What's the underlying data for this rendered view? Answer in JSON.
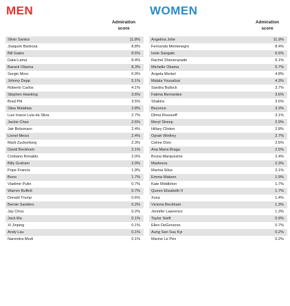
{
  "panels": [
    {
      "key": "men",
      "title": "MEN",
      "column_header": "Admiration score",
      "rows": [
        {
          "name": "Silvio Santos",
          "score": "11.8%"
        },
        {
          "name": "Joaquim Barbosa",
          "score": "8.8%"
        },
        {
          "name": "Bill Gates",
          "score": "8.5%"
        },
        {
          "name": "Dalai Lama",
          "score": "8.4%"
        },
        {
          "name": "Barack Obama",
          "score": "8.3%"
        },
        {
          "name": "Sergio Moro",
          "score": "6.9%"
        },
        {
          "name": "Johnny Depp",
          "score": "5.1%"
        },
        {
          "name": "Roberto Carlos",
          "score": "4.1%"
        },
        {
          "name": "Stephen Hawking",
          "score": "3.6%"
        },
        {
          "name": "Brad Pitt",
          "score": "3.5%"
        },
        {
          "name": "Silas Malafaia",
          "score": "2.8%"
        },
        {
          "name": "Luiz Inacio Lula da Silva",
          "score": "2.7%"
        },
        {
          "name": "Jackie Chan",
          "score": "2.6%"
        },
        {
          "name": "Jair Bolsonaro",
          "score": "2.4%"
        },
        {
          "name": "Lionel Messi",
          "score": "2.4%"
        },
        {
          "name": "Mark Zuckerberg",
          "score": "2.3%"
        },
        {
          "name": "David Beckham",
          "score": "2.1%"
        },
        {
          "name": "Cristiano Ronaldo",
          "score": "2.0%"
        },
        {
          "name": "Billy Graham",
          "score": "2.0%"
        },
        {
          "name": "Pope Francis",
          "score": "1.9%"
        },
        {
          "name": "Bono",
          "score": "1.7%"
        },
        {
          "name": "Vladimir Putin",
          "score": "0.7%"
        },
        {
          "name": "Warren Buffett",
          "score": "0.7%"
        },
        {
          "name": "Donald Trump",
          "score": "0.6%"
        },
        {
          "name": "Bernie Sanders",
          "score": "0.2%"
        },
        {
          "name": "Jay Chou",
          "score": "0.2%"
        },
        {
          "name": "Jack Ma",
          "score": "0.1%"
        },
        {
          "name": "Xi Jinping",
          "score": "0.1%"
        },
        {
          "name": "Andy Lau",
          "score": "0.1%"
        },
        {
          "name": "Narendra Modi",
          "score": "0.1%"
        }
      ]
    },
    {
      "key": "women",
      "title": "WOMEN",
      "column_header": "Admiration score",
      "rows": [
        {
          "name": "Angelina Jolie",
          "score": "11.9%"
        },
        {
          "name": "Fernanda Montenegro",
          "score": "8.4%"
        },
        {
          "name": "Ivete Sangalo",
          "score": "6.5%"
        },
        {
          "name": "Rachel Shenerazade",
          "score": "6.1%"
        },
        {
          "name": "Michelle Obama",
          "score": "5.7%"
        },
        {
          "name": "Angela Merkel",
          "score": "4.8%"
        },
        {
          "name": "Malala Yousafzai",
          "score": "4.3%"
        },
        {
          "name": "Sandra Bullock",
          "score": "3.7%"
        },
        {
          "name": "Fatima Bernardes",
          "score": "3.6%"
        },
        {
          "name": "Shakira",
          "score": "3.5%"
        },
        {
          "name": "Beyonce",
          "score": "3.3%"
        },
        {
          "name": "Dilma Rousseff",
          "score": "3.1%"
        },
        {
          "name": "Meryl Streep",
          "score": "2.9%"
        },
        {
          "name": "Hillary Clinton",
          "score": "2.8%"
        },
        {
          "name": "Oprah Winfrey",
          "score": "2.7%"
        },
        {
          "name": "Celine Dion",
          "score": "2.5%"
        },
        {
          "name": "Ana Maria Braga",
          "score": "2.5%"
        },
        {
          "name": "Bruna Marquezine",
          "score": "2.4%"
        },
        {
          "name": "Madonna",
          "score": "2.3%"
        },
        {
          "name": "Marina Silva",
          "score": "2.1%"
        },
        {
          "name": "Emma Watson",
          "score": "1.9%"
        },
        {
          "name": "Kate Middleton",
          "score": "1.7%"
        },
        {
          "name": "Queen Elizabeth II",
          "score": "1.7%"
        },
        {
          "name": "Xuxa",
          "score": "1.4%"
        },
        {
          "name": "Victoria Beckham",
          "score": "1.3%"
        },
        {
          "name": "Jennifer Lawrence",
          "score": "1.3%"
        },
        {
          "name": "Taylor Swift",
          "score": "0.9%"
        },
        {
          "name": "Ellen DeGeneres",
          "score": "0.7%"
        },
        {
          "name": "Aung San Suu Kyi",
          "score": "0.2%"
        },
        {
          "name": "Marine Le Pen",
          "score": "0.2%"
        }
      ]
    }
  ],
  "colors": {
    "men_title": "#e4322b",
    "women_title": "#2b8ac6",
    "row_shade": "#e3e3e3"
  },
  "chart_data": [
    {
      "type": "table",
      "title": "MEN",
      "columns": [
        "",
        "Admiration score"
      ],
      "categories": [
        "Silvio Santos",
        "Joaquim Barbosa",
        "Bill Gates",
        "Dalai Lama",
        "Barack Obama",
        "Sergio Moro",
        "Johnny Depp",
        "Roberto Carlos",
        "Stephen Hawking",
        "Brad Pitt",
        "Silas Malafaia",
        "Luiz Inacio Lula da Silva",
        "Jackie Chan",
        "Jair Bolsonaro",
        "Lionel Messi",
        "Mark Zuckerberg",
        "David Beckham",
        "Cristiano Ronaldo",
        "Billy Graham",
        "Pope Francis",
        "Bono",
        "Vladimir Putin",
        "Warren Buffett",
        "Donald Trump",
        "Bernie Sanders",
        "Jay Chou",
        "Jack Ma",
        "Xi Jinping",
        "Andy Lau",
        "Narendra Modi"
      ],
      "values": [
        11.8,
        8.8,
        8.5,
        8.4,
        8.3,
        6.9,
        5.1,
        4.1,
        3.6,
        3.5,
        2.8,
        2.7,
        2.6,
        2.4,
        2.4,
        2.3,
        2.1,
        2.0,
        2.0,
        1.9,
        1.7,
        0.7,
        0.7,
        0.6,
        0.2,
        0.2,
        0.1,
        0.1,
        0.1,
        0.1
      ]
    },
    {
      "type": "table",
      "title": "WOMEN",
      "columns": [
        "",
        "Admiration score"
      ],
      "categories": [
        "Angelina Jolie",
        "Fernanda Montenegro",
        "Ivete Sangalo",
        "Rachel Shenerazade",
        "Michelle Obama",
        "Angela Merkel",
        "Malala Yousafzai",
        "Sandra Bullock",
        "Fatima Bernardes",
        "Shakira",
        "Beyonce",
        "Dilma Rousseff",
        "Meryl Streep",
        "Hillary Clinton",
        "Oprah Winfrey",
        "Celine Dion",
        "Ana Maria Braga",
        "Bruna Marquezine",
        "Madonna",
        "Marina Silva",
        "Emma Watson",
        "Kate Middleton",
        "Queen Elizabeth II",
        "Xuxa",
        "Victoria Beckham",
        "Jennifer Lawrence",
        "Taylor Swift",
        "Ellen DeGeneres",
        "Aung San Suu Kyi",
        "Marine Le Pen"
      ],
      "values": [
        11.9,
        8.4,
        6.5,
        6.1,
        5.7,
        4.8,
        4.3,
        3.7,
        3.6,
        3.5,
        3.3,
        3.1,
        2.9,
        2.8,
        2.7,
        2.5,
        2.5,
        2.4,
        2.3,
        2.1,
        1.9,
        1.7,
        1.7,
        1.4,
        1.3,
        1.3,
        0.9,
        0.7,
        0.2,
        0.2
      ]
    }
  ]
}
